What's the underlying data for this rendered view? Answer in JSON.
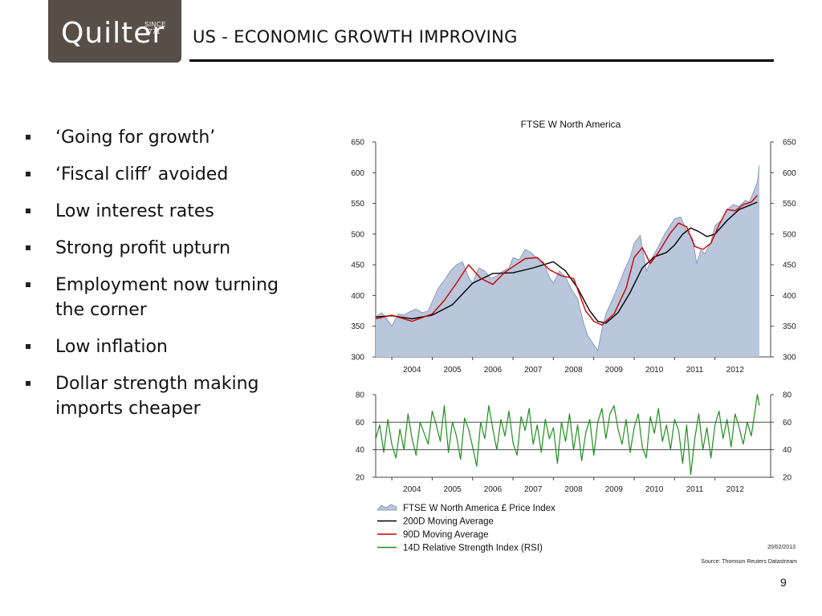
{
  "logo": {
    "word": "Quilter",
    "since": "SINCE 1771"
  },
  "slide": {
    "title": "US - ECONOMIC GROWTH IMPROVING",
    "page_number": "9"
  },
  "bullets": [
    {
      "lines": [
        "‘Going for growth’"
      ]
    },
    {
      "lines": [
        "‘Fiscal cliff’ avoided"
      ]
    },
    {
      "lines": [
        "Low interest rates"
      ]
    },
    {
      "lines": [
        "Strong profit upturn"
      ]
    },
    {
      "lines": [
        "Employment now turning",
        "the corner"
      ]
    },
    {
      "lines": [
        "Low inflation"
      ]
    },
    {
      "lines": [
        "Dollar strength making",
        "imports cheaper"
      ]
    }
  ],
  "colors": {
    "area_fill": "#b9c6db",
    "area_line": "#7d8fb5",
    "ma200": "#000000",
    "ma90": "#cc0000",
    "rsi": "#1f8f1f",
    "axis": "#444444"
  },
  "chart_data": [
    {
      "type": "area",
      "title": "FTSE W North America",
      "x_ticks": [
        "2004",
        "2005",
        "2006",
        "2007",
        "2008",
        "2009",
        "2010",
        "2011",
        "2012"
      ],
      "ylim": [
        300,
        650
      ],
      "y_ticks": [
        300,
        350,
        400,
        450,
        500,
        550,
        600,
        650
      ],
      "x_range": [
        2003.6,
        2013.1
      ],
      "series": [
        {
          "name": "FTSE W North America £ Price Index",
          "type": "area",
          "x": [
            2003.6,
            2003.75,
            2003.9,
            2004.0,
            2004.15,
            2004.3,
            2004.45,
            2004.6,
            2004.75,
            2004.9,
            2005.0,
            2005.15,
            2005.3,
            2005.45,
            2005.6,
            2005.75,
            2005.9,
            2006.0,
            2006.15,
            2006.3,
            2006.45,
            2006.6,
            2006.75,
            2006.9,
            2007.0,
            2007.15,
            2007.3,
            2007.45,
            2007.6,
            2007.75,
            2007.9,
            2008.0,
            2008.15,
            2008.3,
            2008.45,
            2008.6,
            2008.75,
            2008.85,
            2008.95,
            2009.1,
            2009.2,
            2009.3,
            2009.45,
            2009.6,
            2009.75,
            2009.9,
            2010.0,
            2010.15,
            2010.3,
            2010.45,
            2010.6,
            2010.75,
            2010.9,
            2011.0,
            2011.15,
            2011.3,
            2011.45,
            2011.55,
            2011.65,
            2011.75,
            2011.9,
            2012.0,
            2012.15,
            2012.3,
            2012.45,
            2012.6,
            2012.75,
            2012.85,
            2012.95,
            2013.05,
            2013.1
          ],
          "values": [
            365,
            372,
            360,
            350,
            370,
            368,
            374,
            378,
            372,
            375,
            390,
            412,
            425,
            440,
            450,
            455,
            430,
            420,
            445,
            440,
            428,
            432,
            440,
            445,
            462,
            458,
            475,
            470,
            460,
            455,
            430,
            420,
            440,
            430,
            410,
            395,
            355,
            335,
            325,
            310,
            345,
            370,
            392,
            415,
            440,
            462,
            485,
            498,
            440,
            462,
            480,
            500,
            515,
            525,
            528,
            505,
            492,
            452,
            474,
            468,
            487,
            514,
            522,
            540,
            548,
            545,
            555,
            552,
            568,
            585,
            612
          ]
        },
        {
          "name": "200D Moving Average",
          "type": "line",
          "x": [
            2003.6,
            2004.0,
            2004.5,
            2005.0,
            2005.5,
            2006.0,
            2006.5,
            2007.0,
            2007.5,
            2008.0,
            2008.3,
            2008.6,
            2008.9,
            2009.1,
            2009.3,
            2009.6,
            2009.9,
            2010.2,
            2010.5,
            2010.8,
            2011.0,
            2011.2,
            2011.4,
            2011.6,
            2011.8,
            2012.0,
            2012.3,
            2012.6,
            2012.9,
            2013.05
          ],
          "values": [
            365,
            367,
            362,
            368,
            385,
            420,
            436,
            437,
            445,
            455,
            440,
            412,
            375,
            358,
            355,
            372,
            405,
            445,
            463,
            470,
            482,
            500,
            510,
            504,
            496,
            500,
            522,
            540,
            548,
            552
          ]
        },
        {
          "name": "90D Moving Average",
          "type": "line",
          "x": [
            2003.6,
            2004.0,
            2004.5,
            2005.0,
            2005.3,
            2005.6,
            2005.9,
            2006.2,
            2006.5,
            2006.8,
            2007.0,
            2007.3,
            2007.6,
            2007.9,
            2008.2,
            2008.5,
            2008.8,
            2009.0,
            2009.2,
            2009.5,
            2009.8,
            2010.0,
            2010.2,
            2010.4,
            2010.6,
            2010.9,
            2011.1,
            2011.3,
            2011.5,
            2011.7,
            2011.9,
            2012.1,
            2012.3,
            2012.5,
            2012.7,
            2012.9,
            2013.05
          ],
          "values": [
            362,
            368,
            358,
            370,
            392,
            420,
            450,
            428,
            418,
            438,
            447,
            460,
            462,
            442,
            432,
            428,
            375,
            358,
            352,
            370,
            412,
            462,
            478,
            452,
            470,
            502,
            518,
            512,
            480,
            475,
            485,
            515,
            540,
            538,
            548,
            552,
            563
          ]
        }
      ]
    },
    {
      "type": "line",
      "title": "",
      "x_ticks": [
        "2004",
        "2005",
        "2006",
        "2007",
        "2008",
        "2009",
        "2010",
        "2011",
        "2012"
      ],
      "ylim": [
        20,
        80
      ],
      "y_ticks": [
        20,
        40,
        60,
        80
      ],
      "reference_lines": [
        40,
        60
      ],
      "x_range": [
        2003.6,
        2013.1
      ],
      "series": [
        {
          "name": "14D Relative Strength Index (RSI)",
          "type": "line",
          "x": [
            2003.6,
            2003.7,
            2003.8,
            2003.9,
            2004.0,
            2004.1,
            2004.2,
            2004.3,
            2004.4,
            2004.5,
            2004.6,
            2004.7,
            2004.8,
            2004.9,
            2005.0,
            2005.1,
            2005.2,
            2005.3,
            2005.4,
            2005.5,
            2005.6,
            2005.7,
            2005.8,
            2005.9,
            2006.0,
            2006.1,
            2006.2,
            2006.3,
            2006.4,
            2006.5,
            2006.6,
            2006.7,
            2006.8,
            2006.9,
            2007.0,
            2007.1,
            2007.2,
            2007.3,
            2007.4,
            2007.5,
            2007.6,
            2007.7,
            2007.8,
            2007.9,
            2008.0,
            2008.1,
            2008.2,
            2008.3,
            2008.4,
            2008.5,
            2008.6,
            2008.7,
            2008.8,
            2008.9,
            2009.0,
            2009.1,
            2009.2,
            2009.3,
            2009.4,
            2009.5,
            2009.6,
            2009.7,
            2009.8,
            2009.9,
            2010.0,
            2010.1,
            2010.2,
            2010.3,
            2010.4,
            2010.5,
            2010.6,
            2010.7,
            2010.8,
            2010.9,
            2011.0,
            2011.1,
            2011.2,
            2011.3,
            2011.4,
            2011.5,
            2011.6,
            2011.7,
            2011.8,
            2011.9,
            2012.0,
            2012.1,
            2012.2,
            2012.3,
            2012.4,
            2012.5,
            2012.6,
            2012.7,
            2012.8,
            2012.9,
            2013.0,
            2013.05,
            2013.1
          ],
          "values": [
            48,
            58,
            38,
            62,
            44,
            34,
            55,
            40,
            66,
            48,
            36,
            60,
            52,
            44,
            68,
            58,
            46,
            72,
            38,
            60,
            50,
            33,
            63,
            55,
            42,
            28,
            60,
            48,
            72,
            55,
            40,
            62,
            50,
            68,
            45,
            36,
            64,
            54,
            70,
            44,
            58,
            38,
            62,
            48,
            56,
            30,
            60,
            46,
            66,
            40,
            58,
            32,
            52,
            62,
            36,
            60,
            70,
            48,
            66,
            72,
            55,
            44,
            62,
            38,
            56,
            66,
            42,
            34,
            64,
            52,
            70,
            46,
            58,
            40,
            62,
            54,
            30,
            58,
            22,
            48,
            66,
            40,
            56,
            34,
            58,
            68,
            48,
            62,
            42,
            66,
            56,
            44,
            60,
            50,
            70,
            80,
            72
          ]
        }
      ]
    }
  ],
  "legend": [
    {
      "label": "FTSE W North America £ Price Index",
      "kind": "area"
    },
    {
      "label": "200D Moving Average",
      "kind": "ma200"
    },
    {
      "label": "90D Moving Average",
      "kind": "ma90"
    },
    {
      "label": "14D Relative Strength Index (RSI)",
      "kind": "rsi"
    }
  ],
  "footer": {
    "date": "20/02/2013",
    "source": "Source: Thomson Reuters Datastream"
  }
}
